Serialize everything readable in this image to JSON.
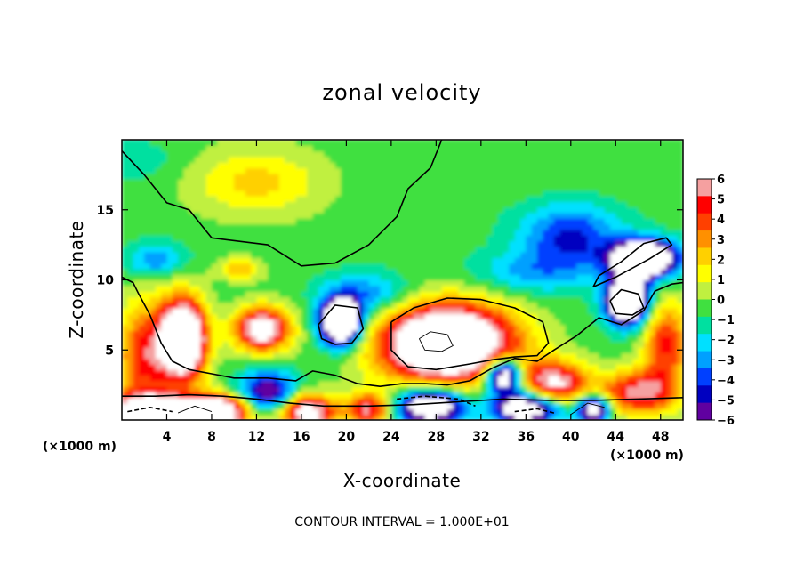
{
  "chart_data": {
    "type": "heatmap",
    "title": "zonal velocity",
    "xlabel": "X-coordinate",
    "ylabel": "Z-coordinate",
    "x_unit": "(×1000 m)",
    "y_unit": "(×1000 m)",
    "xlim": [
      0,
      50
    ],
    "ylim": [
      0,
      20
    ],
    "x_ticks": [
      4,
      8,
      12,
      16,
      20,
      24,
      28,
      32,
      36,
      40,
      44,
      48
    ],
    "y_ticks": [
      5,
      10,
      15
    ],
    "footer": "CONTOUR INTERVAL = 1.000E+01",
    "colorbar": {
      "min": -6,
      "max": 6,
      "tick_values": [
        6,
        5,
        4,
        3,
        2,
        1,
        0,
        -1,
        -2,
        -3,
        -4,
        -5,
        -6
      ],
      "tick_labels": [
        "6",
        "5",
        "4",
        "3",
        "2",
        "1",
        "0",
        "−1",
        "−2",
        "−3",
        "−4",
        "−5",
        "−6"
      ],
      "colors": [
        "#f5a0a0",
        "#ff0000",
        "#ff4000",
        "#ff9000",
        "#ffd000",
        "#ffff00",
        "#c0f040",
        "#40e040",
        "#00e0a0",
        "#00e0ff",
        "#00a0ff",
        "#0040ff",
        "#0000c0",
        "#6000a0"
      ]
    },
    "features": [
      {
        "x": 5.5,
        "z": 5.8,
        "sx": 2.0,
        "sz": 2.8,
        "value": 12
      },
      {
        "x": 12.5,
        "z": 6.5,
        "sx": 2.5,
        "sz": 1.6,
        "value": 8
      },
      {
        "x": 29.0,
        "z": 5.5,
        "sx": 6.0,
        "sz": 2.8,
        "value": 12
      },
      {
        "x": 2.0,
        "z": 4.5,
        "sx": 2.5,
        "sz": 4.0,
        "value": 5
      },
      {
        "x": 2.5,
        "z": 0.6,
        "sx": 5.0,
        "sz": 1.2,
        "value": 9
      },
      {
        "x": 8.5,
        "z": 0.6,
        "sx": 3.0,
        "sz": 1.2,
        "value": 9
      },
      {
        "x": 16.5,
        "z": 0.6,
        "sx": 2.5,
        "sz": 1.3,
        "value": 8
      },
      {
        "x": 22.0,
        "z": 0.8,
        "sx": 2.0,
        "sz": 1.2,
        "value": 6
      },
      {
        "x": 38.5,
        "z": 2.6,
        "sx": 3.0,
        "sz": 1.6,
        "value": 7
      },
      {
        "x": 48.5,
        "z": 5.5,
        "sx": 2.0,
        "sz": 3.0,
        "value": 5
      },
      {
        "x": 46.0,
        "z": 2.0,
        "sx": 3.5,
        "sz": 1.6,
        "value": 6
      },
      {
        "x": 19.5,
        "z": 7.0,
        "sx": 1.8,
        "sz": 1.6,
        "value": -12
      },
      {
        "x": 45.0,
        "z": 8.5,
        "sx": 1.8,
        "sz": 1.6,
        "value": -12
      },
      {
        "x": 46.5,
        "z": 11.5,
        "sx": 2.8,
        "sz": 1.3,
        "value": -12
      },
      {
        "x": 34.0,
        "z": 3.2,
        "sx": 1.6,
        "sz": 1.2,
        "value": -10
      },
      {
        "x": 27.5,
        "z": 1.0,
        "sx": 3.0,
        "sz": 1.3,
        "value": -9
      },
      {
        "x": 36.0,
        "z": 0.9,
        "sx": 3.0,
        "sz": 1.2,
        "value": -9
      },
      {
        "x": 42.0,
        "z": 0.8,
        "sx": 1.5,
        "sz": 1.0,
        "value": -8
      },
      {
        "x": 13.0,
        "z": 2.0,
        "sx": 2.5,
        "sz": 1.5,
        "value": -6
      },
      {
        "x": 40.0,
        "z": 13.0,
        "sx": 4.5,
        "sz": 2.5,
        "value": -4
      },
      {
        "x": 36.0,
        "z": 10.5,
        "sx": 5.0,
        "sz": 1.5,
        "value": -2
      },
      {
        "x": 3.0,
        "z": 11.5,
        "sx": 2.5,
        "sz": 1.2,
        "value": -3
      },
      {
        "x": 22.0,
        "z": 9.0,
        "sx": 4.0,
        "sz": 1.5,
        "value": -3
      },
      {
        "x": 12.0,
        "z": 17.0,
        "sx": 6.0,
        "sz": 2.5,
        "value": 2.5
      },
      {
        "x": 10.5,
        "z": 10.8,
        "sx": 2.0,
        "sz": 0.8,
        "value": 3
      },
      {
        "x": 1.0,
        "z": 18.5,
        "sx": 4.0,
        "sz": 1.5,
        "value": -1
      },
      {
        "x": 40.0,
        "z": 18.0,
        "sx": 8.0,
        "sz": 2.0,
        "value": 0.5
      }
    ],
    "background_value": -0.5,
    "zero_contours": [
      {
        "style": "solid",
        "points": [
          [
            0,
            19.2
          ],
          [
            2,
            17.5
          ],
          [
            4,
            15.5
          ],
          [
            6,
            15.0
          ],
          [
            7.5,
            13.5
          ],
          [
            8,
            13.0
          ]
        ]
      },
      {
        "style": "solid",
        "points": [
          [
            8,
            13.0
          ],
          [
            13,
            12.5
          ],
          [
            16,
            11.0
          ],
          [
            19,
            11.2
          ],
          [
            22,
            12.5
          ],
          [
            24.5,
            14.5
          ],
          [
            25.5,
            16.5
          ],
          [
            27.5,
            18.0
          ],
          [
            28.5,
            20
          ]
        ]
      },
      {
        "style": "solid",
        "points": [
          [
            0,
            10.2
          ],
          [
            1,
            9.8
          ],
          [
            1.5,
            9.0
          ],
          [
            2.5,
            7.5
          ],
          [
            3.5,
            5.5
          ],
          [
            4.5,
            4.2
          ],
          [
            6,
            3.6
          ],
          [
            8,
            3.3
          ],
          [
            10,
            3.0
          ],
          [
            13,
            3.0
          ],
          [
            15.5,
            2.8
          ],
          [
            17,
            3.5
          ],
          [
            19,
            3.2
          ],
          [
            21,
            2.6
          ],
          [
            23,
            2.4
          ],
          [
            25,
            2.6
          ],
          [
            27,
            2.6
          ],
          [
            29,
            2.5
          ],
          [
            31,
            2.8
          ],
          [
            33,
            3.7
          ],
          [
            35,
            4.4
          ],
          [
            37,
            4.2
          ],
          [
            38.5,
            5.0
          ],
          [
            40.5,
            6.0
          ],
          [
            42.5,
            7.3
          ],
          [
            44.5,
            6.8
          ],
          [
            46.5,
            7.8
          ],
          [
            47.5,
            9.2
          ],
          [
            49,
            9.7
          ],
          [
            50,
            9.8
          ]
        ]
      },
      {
        "style": "solid",
        "points": [
          [
            0,
            1.7
          ],
          [
            3,
            1.7
          ],
          [
            6,
            1.8
          ],
          [
            9,
            1.7
          ],
          [
            12,
            1.5
          ],
          [
            15,
            1.2
          ],
          [
            18,
            1.0
          ],
          [
            22,
            1.0
          ],
          [
            26,
            1.1
          ],
          [
            30,
            1.3
          ],
          [
            34,
            1.5
          ],
          [
            38,
            1.4
          ],
          [
            42,
            1.4
          ],
          [
            46,
            1.5
          ],
          [
            50,
            1.6
          ]
        ]
      },
      {
        "style": "solid",
        "points": [
          [
            24,
            7.0
          ],
          [
            26,
            8.0
          ],
          [
            29,
            8.7
          ],
          [
            32,
            8.6
          ],
          [
            35,
            8.0
          ],
          [
            37.5,
            7.0
          ],
          [
            38,
            5.5
          ],
          [
            37,
            4.6
          ],
          [
            35,
            4.5
          ],
          [
            33,
            4.3
          ],
          [
            31,
            4.0
          ],
          [
            28,
            3.6
          ],
          [
            25.5,
            3.8
          ],
          [
            24,
            5.0
          ],
          [
            24,
            7.0
          ]
        ]
      },
      {
        "style": "solid",
        "points": [
          [
            17.5,
            6.8
          ],
          [
            19,
            8.2
          ],
          [
            21,
            8.0
          ],
          [
            21.5,
            6.5
          ],
          [
            20.5,
            5.5
          ],
          [
            19,
            5.4
          ],
          [
            17.8,
            5.8
          ],
          [
            17.5,
            6.8
          ]
        ]
      },
      {
        "style": "solid",
        "points": [
          [
            43.5,
            8.5
          ],
          [
            44.5,
            9.3
          ],
          [
            46,
            9.0
          ],
          [
            46.5,
            8.0
          ],
          [
            45.5,
            7.5
          ],
          [
            44,
            7.6
          ],
          [
            43.5,
            8.5
          ]
        ]
      },
      {
        "style": "solid",
        "points": [
          [
            42,
            9.5
          ],
          [
            44,
            10.2
          ],
          [
            47,
            11.5
          ],
          [
            49,
            12.5
          ],
          [
            48.5,
            13.0
          ],
          [
            46.5,
            12.6
          ],
          [
            44.5,
            11.3
          ],
          [
            42.5,
            10.3
          ],
          [
            42,
            9.5
          ]
        ]
      },
      {
        "style": "dashed",
        "points": [
          [
            0.5,
            0.6
          ],
          [
            2.5,
            0.9
          ],
          [
            4.5,
            0.6
          ]
        ]
      },
      {
        "style": "dashed",
        "points": [
          [
            24.5,
            1.5
          ],
          [
            27,
            1.7
          ],
          [
            30,
            1.5
          ],
          [
            31.5,
            1.0
          ]
        ]
      },
      {
        "style": "dashed",
        "points": [
          [
            35,
            0.6
          ],
          [
            37,
            0.8
          ],
          [
            38.5,
            0.5
          ]
        ]
      },
      {
        "style": "thin",
        "points": [
          [
            26.5,
            5.8
          ],
          [
            27.5,
            6.3
          ],
          [
            29,
            6.1
          ],
          [
            29.5,
            5.3
          ],
          [
            28.5,
            4.9
          ],
          [
            27,
            5.0
          ],
          [
            26.5,
            5.8
          ]
        ]
      },
      {
        "style": "thin",
        "points": [
          [
            40,
            0.4
          ],
          [
            41.5,
            1.2
          ],
          [
            43,
            0.9
          ]
        ]
      },
      {
        "style": "thin",
        "points": [
          [
            5,
            0.5
          ],
          [
            6.5,
            1.0
          ],
          [
            8,
            0.6
          ]
        ]
      }
    ]
  }
}
